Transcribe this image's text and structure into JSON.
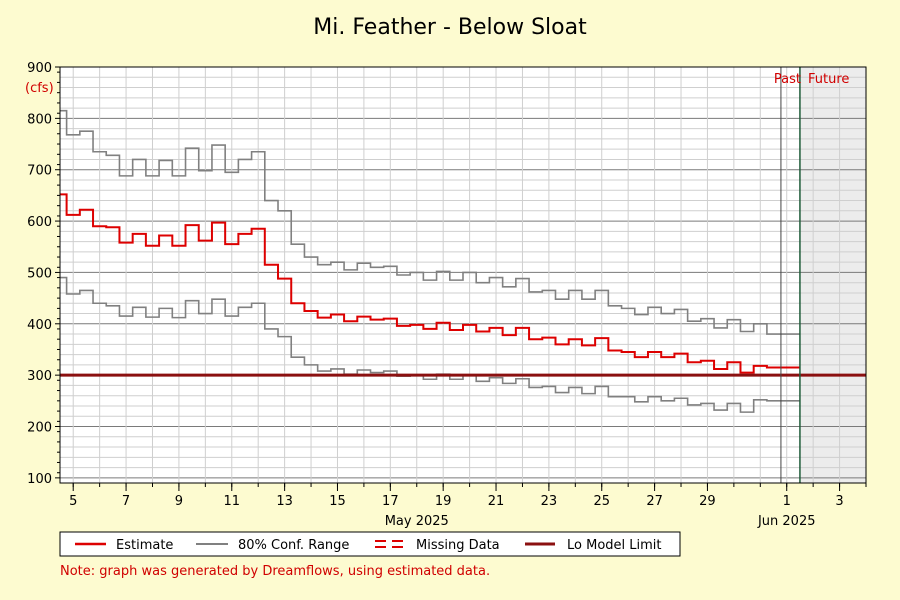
{
  "chart_data": {
    "type": "line",
    "title": "Mi. Feather - Below Sloat",
    "unit_label": "(cfs)",
    "ylim": [
      90,
      900
    ],
    "y_ticks": [
      100,
      200,
      300,
      400,
      500,
      600,
      700,
      800,
      900
    ],
    "x_range": [
      "2025-05-04T12:00",
      "2025-06-04T00:00"
    ],
    "x_ticks": [
      {
        "label": "5",
        "date": "2025-05-05"
      },
      {
        "label": "7",
        "date": "2025-05-07"
      },
      {
        "label": "9",
        "date": "2025-05-09"
      },
      {
        "label": "11",
        "date": "2025-05-11"
      },
      {
        "label": "13",
        "date": "2025-05-13"
      },
      {
        "label": "15",
        "date": "2025-05-15"
      },
      {
        "label": "17",
        "date": "2025-05-17"
      },
      {
        "label": "19",
        "date": "2025-05-19"
      },
      {
        "label": "21",
        "date": "2025-05-21"
      },
      {
        "label": "23",
        "date": "2025-05-23"
      },
      {
        "label": "25",
        "date": "2025-05-25"
      },
      {
        "label": "27",
        "date": "2025-05-27"
      },
      {
        "label": "29",
        "date": "2025-05-29"
      },
      {
        "label": "1",
        "date": "2025-06-01"
      },
      {
        "label": "3",
        "date": "2025-06-03"
      }
    ],
    "month_labels": [
      {
        "label": "May 2025",
        "date": "2025-05-18"
      },
      {
        "label": "Jun 2025",
        "date": "2025-06-01"
      }
    ],
    "past_label": "Past",
    "future_label": "Future",
    "now": "2025-06-01T12:00",
    "grid": true,
    "legend_position": "bottom",
    "series": [
      {
        "name": "Estimate",
        "color": "#dd0000",
        "x": [
          "2025-05-04T12:00",
          "2025-05-05T00:00",
          "2025-05-05T12:00",
          "2025-05-06T00:00",
          "2025-05-06T12:00",
          "2025-05-07T00:00",
          "2025-05-07T12:00",
          "2025-05-08T00:00",
          "2025-05-08T12:00",
          "2025-05-09T00:00",
          "2025-05-09T12:00",
          "2025-05-10T00:00",
          "2025-05-10T12:00",
          "2025-05-11T00:00",
          "2025-05-11T12:00",
          "2025-05-12T00:00",
          "2025-05-12T12:00",
          "2025-05-13T00:00",
          "2025-05-13T12:00",
          "2025-05-14T00:00",
          "2025-05-14T12:00",
          "2025-05-15T00:00",
          "2025-05-15T12:00",
          "2025-05-16T00:00",
          "2025-05-16T12:00",
          "2025-05-17T00:00",
          "2025-05-17T12:00",
          "2025-05-18T00:00",
          "2025-05-18T12:00",
          "2025-05-19T00:00",
          "2025-05-19T12:00",
          "2025-05-20T00:00",
          "2025-05-20T12:00",
          "2025-05-21T00:00",
          "2025-05-21T12:00",
          "2025-05-22T00:00",
          "2025-05-22T12:00",
          "2025-05-23T00:00",
          "2025-05-23T12:00",
          "2025-05-24T00:00",
          "2025-05-24T12:00",
          "2025-05-25T00:00",
          "2025-05-25T12:00",
          "2025-05-26T00:00",
          "2025-05-26T12:00",
          "2025-05-27T00:00",
          "2025-05-27T12:00",
          "2025-05-28T00:00",
          "2025-05-28T12:00",
          "2025-05-29T00:00",
          "2025-05-29T12:00",
          "2025-05-30T00:00",
          "2025-05-30T12:00",
          "2025-05-31T00:00",
          "2025-05-31T12:00",
          "2025-06-01T00:00",
          "2025-06-01T12:00"
        ],
        "values": [
          652,
          612,
          622,
          590,
          588,
          558,
          575,
          552,
          572,
          552,
          592,
          562,
          597,
          555,
          575,
          585,
          515,
          488,
          440,
          425,
          412,
          418,
          405,
          414,
          408,
          410,
          396,
          398,
          390,
          402,
          388,
          398,
          385,
          392,
          378,
          392,
          370,
          373,
          360,
          370,
          358,
          372,
          348,
          345,
          335,
          345,
          335,
          342,
          325,
          328,
          312,
          325,
          305,
          318,
          315,
          315,
          315
        ]
      },
      {
        "name": "80% Conf. Range",
        "color": "#808080",
        "x": [
          "2025-05-04T12:00",
          "2025-05-05T00:00",
          "2025-05-05T12:00",
          "2025-05-06T00:00",
          "2025-05-06T12:00",
          "2025-05-07T00:00",
          "2025-05-07T12:00",
          "2025-05-08T00:00",
          "2025-05-08T12:00",
          "2025-05-09T00:00",
          "2025-05-09T12:00",
          "2025-05-10T00:00",
          "2025-05-10T12:00",
          "2025-05-11T00:00",
          "2025-05-11T12:00",
          "2025-05-12T00:00",
          "2025-05-12T12:00",
          "2025-05-13T00:00",
          "2025-05-13T12:00",
          "2025-05-14T00:00",
          "2025-05-14T12:00",
          "2025-05-15T00:00",
          "2025-05-15T12:00",
          "2025-05-16T00:00",
          "2025-05-16T12:00",
          "2025-05-17T00:00",
          "2025-05-17T12:00",
          "2025-05-18T00:00",
          "2025-05-18T12:00",
          "2025-05-19T00:00",
          "2025-05-19T12:00",
          "2025-05-20T00:00",
          "2025-05-20T12:00",
          "2025-05-21T00:00",
          "2025-05-21T12:00",
          "2025-05-22T00:00",
          "2025-05-22T12:00",
          "2025-05-23T00:00",
          "2025-05-23T12:00",
          "2025-05-24T00:00",
          "2025-05-24T12:00",
          "2025-05-25T00:00",
          "2025-05-25T12:00",
          "2025-05-26T00:00",
          "2025-05-26T12:00",
          "2025-05-27T00:00",
          "2025-05-27T12:00",
          "2025-05-28T00:00",
          "2025-05-28T12:00",
          "2025-05-29T00:00",
          "2025-05-29T12:00",
          "2025-05-30T00:00",
          "2025-05-30T12:00",
          "2025-05-31T00:00",
          "2025-05-31T12:00",
          "2025-06-01T00:00",
          "2025-06-01T12:00"
        ],
        "values": [
          815,
          768,
          775,
          735,
          728,
          688,
          720,
          688,
          718,
          688,
          742,
          698,
          748,
          695,
          720,
          735,
          640,
          620,
          555,
          530,
          515,
          520,
          505,
          518,
          510,
          512,
          495,
          500,
          485,
          502,
          485,
          500,
          480,
          490,
          472,
          488,
          462,
          465,
          448,
          465,
          448,
          465,
          435,
          430,
          418,
          432,
          420,
          428,
          405,
          410,
          392,
          408,
          385,
          400,
          380,
          380,
          380
        ]
      },
      {
        "name": "80% Conf. Range (lower)",
        "color": "#808080",
        "x": [
          "2025-05-04T12:00",
          "2025-05-05T00:00",
          "2025-05-05T12:00",
          "2025-05-06T00:00",
          "2025-05-06T12:00",
          "2025-05-07T00:00",
          "2025-05-07T12:00",
          "2025-05-08T00:00",
          "2025-05-08T12:00",
          "2025-05-09T00:00",
          "2025-05-09T12:00",
          "2025-05-10T00:00",
          "2025-05-10T12:00",
          "2025-05-11T00:00",
          "2025-05-11T12:00",
          "2025-05-12T00:00",
          "2025-05-12T12:00",
          "2025-05-13T00:00",
          "2025-05-13T12:00",
          "2025-05-14T00:00",
          "2025-05-14T12:00",
          "2025-05-15T00:00",
          "2025-05-15T12:00",
          "2025-05-16T00:00",
          "2025-05-16T12:00",
          "2025-05-17T00:00",
          "2025-05-17T12:00",
          "2025-05-18T00:00",
          "2025-05-18T12:00",
          "2025-05-19T00:00",
          "2025-05-19T12:00",
          "2025-05-20T00:00",
          "2025-05-20T12:00",
          "2025-05-21T00:00",
          "2025-05-21T12:00",
          "2025-05-22T00:00",
          "2025-05-22T12:00",
          "2025-05-23T00:00",
          "2025-05-23T12:00",
          "2025-05-24T00:00",
          "2025-05-24T12:00",
          "2025-05-25T00:00",
          "2025-05-25T12:00",
          "2025-05-26T00:00",
          "2025-05-26T12:00",
          "2025-05-27T00:00",
          "2025-05-27T12:00",
          "2025-05-28T00:00",
          "2025-05-28T12:00",
          "2025-05-29T00:00",
          "2025-05-29T12:00",
          "2025-05-30T00:00",
          "2025-05-30T12:00",
          "2025-05-31T00:00",
          "2025-05-31T12:00",
          "2025-06-01T00:00",
          "2025-06-01T12:00"
        ],
        "values": [
          490,
          458,
          465,
          440,
          435,
          415,
          432,
          413,
          430,
          412,
          445,
          420,
          448,
          415,
          432,
          440,
          390,
          375,
          335,
          320,
          308,
          312,
          302,
          310,
          305,
          308,
          298,
          300,
          292,
          302,
          292,
          300,
          288,
          295,
          284,
          293,
          276,
          278,
          266,
          276,
          264,
          278,
          258,
          258,
          248,
          258,
          250,
          255,
          242,
          245,
          232,
          245,
          228,
          252,
          250,
          250,
          250
        ]
      },
      {
        "name": "Lo Model Limit",
        "color": "#8b1010",
        "x": [
          "2025-05-04T12:00",
          "2025-06-04T00:00"
        ],
        "values": [
          300,
          300
        ]
      }
    ]
  },
  "legend": {
    "items": [
      {
        "label": "Estimate",
        "color": "#dd0000",
        "style": "solid"
      },
      {
        "label": "80% Conf. Range",
        "color": "#808080",
        "style": "solid"
      },
      {
        "label": "Missing Data",
        "color": "#dd0000",
        "style": "dashed"
      },
      {
        "label": "Lo Model Limit",
        "color": "#8b1010",
        "style": "solid"
      }
    ]
  },
  "note": "Note: graph was generated by Dreamflows, using estimated data."
}
